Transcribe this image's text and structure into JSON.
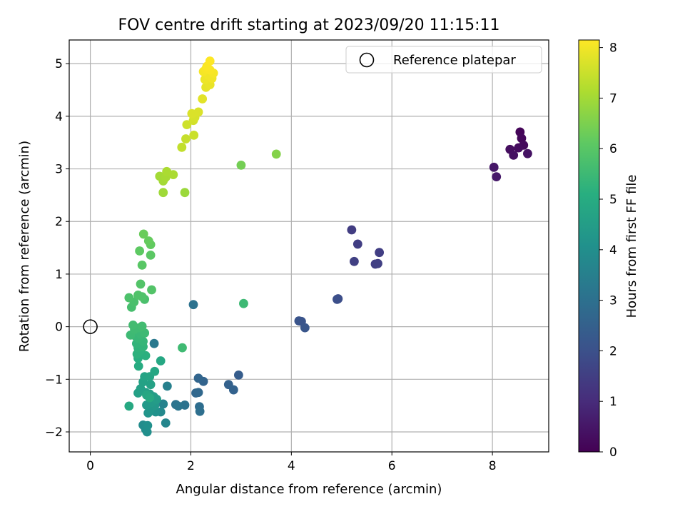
{
  "chart_data": {
    "type": "scatter",
    "title": "FOV centre drift starting at 2023/09/20 11:15:11",
    "xlabel": "Angular distance from reference (arcmin)",
    "ylabel": "Rotation from reference (arcmin)",
    "xlim": [
      -0.42,
      9.12
    ],
    "ylim": [
      -2.38,
      5.45
    ],
    "xticks": [
      0,
      2,
      4,
      6,
      8
    ],
    "yticks": [
      -2,
      -1,
      0,
      1,
      2,
      3,
      4,
      5
    ],
    "grid": true,
    "legend": {
      "placement": "top-right",
      "entries": [
        "Reference platepar"
      ]
    },
    "reference_point": {
      "x": 0,
      "y": 0
    },
    "colorbar": {
      "label": "Hours from first FF file",
      "range": [
        0,
        8.15
      ],
      "ticks": [
        0,
        1,
        2,
        3,
        4,
        5,
        6,
        7,
        8
      ],
      "colormap": "viridis"
    },
    "series": [
      {
        "points": [
          {
            "x": 8.55,
            "y": 3.7,
            "h": 0.1
          },
          {
            "x": 8.58,
            "y": 3.58,
            "h": 0.15
          },
          {
            "x": 8.62,
            "y": 3.45,
            "h": 0.2
          },
          {
            "x": 8.52,
            "y": 3.4,
            "h": 0.25
          },
          {
            "x": 8.35,
            "y": 3.37,
            "h": 0.3
          },
          {
            "x": 8.42,
            "y": 3.26,
            "h": 0.35
          },
          {
            "x": 8.7,
            "y": 3.29,
            "h": 0.4
          },
          {
            "x": 8.03,
            "y": 3.03,
            "h": 0.5
          },
          {
            "x": 8.08,
            "y": 2.85,
            "h": 0.55
          },
          {
            "x": 5.2,
            "y": 1.84,
            "h": 1.45
          },
          {
            "x": 5.32,
            "y": 1.57,
            "h": 1.5
          },
          {
            "x": 5.75,
            "y": 1.41,
            "h": 1.5
          },
          {
            "x": 5.25,
            "y": 1.24,
            "h": 1.55
          },
          {
            "x": 5.67,
            "y": 1.19,
            "h": 1.5
          },
          {
            "x": 5.72,
            "y": 1.2,
            "h": 1.55
          },
          {
            "x": 4.93,
            "y": 0.53,
            "h": 1.9
          },
          {
            "x": 4.91,
            "y": 0.52,
            "h": 1.95
          },
          {
            "x": 4.15,
            "y": 0.11,
            "h": 2.1
          },
          {
            "x": 4.2,
            "y": 0.1,
            "h": 2.1
          },
          {
            "x": 4.27,
            "y": -0.02,
            "h": 2.15
          },
          {
            "x": 2.95,
            "y": -0.92,
            "h": 2.4
          },
          {
            "x": 2.75,
            "y": -1.1,
            "h": 2.5
          },
          {
            "x": 2.85,
            "y": -1.2,
            "h": 2.55
          },
          {
            "x": 2.25,
            "y": -1.04,
            "h": 2.6
          },
          {
            "x": 2.15,
            "y": -0.98,
            "h": 2.65
          },
          {
            "x": 2.1,
            "y": -1.26,
            "h": 2.7
          },
          {
            "x": 2.15,
            "y": -1.25,
            "h": 2.75
          },
          {
            "x": 2.17,
            "y": -1.52,
            "h": 2.9
          },
          {
            "x": 2.18,
            "y": -1.61,
            "h": 2.95
          },
          {
            "x": 1.88,
            "y": -1.49,
            "h": 3.05
          },
          {
            "x": 1.7,
            "y": -1.48,
            "h": 3.1
          },
          {
            "x": 1.75,
            "y": -1.51,
            "h": 3.15
          },
          {
            "x": 2.05,
            "y": 0.42,
            "h": 3.05
          },
          {
            "x": 1.27,
            "y": -0.32,
            "h": 3.3
          },
          {
            "x": 1.53,
            "y": -1.13,
            "h": 3.5
          },
          {
            "x": 1.45,
            "y": -1.47,
            "h": 3.6
          },
          {
            "x": 1.5,
            "y": -1.83,
            "h": 3.7
          },
          {
            "x": 1.4,
            "y": -1.62,
            "h": 3.8
          },
          {
            "x": 1.05,
            "y": -1.87,
            "h": 3.9
          },
          {
            "x": 1.1,
            "y": -1.95,
            "h": 3.95
          },
          {
            "x": 1.13,
            "y": -2.0,
            "h": 4.0
          },
          {
            "x": 1.14,
            "y": -1.88,
            "h": 4.05
          },
          {
            "x": 1.3,
            "y": -1.62,
            "h": 4.1
          },
          {
            "x": 1.15,
            "y": -1.64,
            "h": 4.2
          },
          {
            "x": 1.2,
            "y": -1.56,
            "h": 4.25
          },
          {
            "x": 1.28,
            "y": -1.5,
            "h": 4.3
          },
          {
            "x": 1.12,
            "y": -1.49,
            "h": 4.35
          },
          {
            "x": 1.22,
            "y": -1.44,
            "h": 4.4
          },
          {
            "x": 1.32,
            "y": -1.38,
            "h": 4.45
          },
          {
            "x": 1.26,
            "y": -1.33,
            "h": 4.5
          },
          {
            "x": 1.18,
            "y": -1.28,
            "h": 4.5
          },
          {
            "x": 1.1,
            "y": -1.25,
            "h": 4.55
          },
          {
            "x": 0.95,
            "y": -1.26,
            "h": 4.6
          },
          {
            "x": 1.0,
            "y": -1.18,
            "h": 4.6
          },
          {
            "x": 1.2,
            "y": -1.1,
            "h": 4.65
          },
          {
            "x": 1.05,
            "y": -1.05,
            "h": 4.65
          },
          {
            "x": 1.08,
            "y": -0.95,
            "h": 4.7
          },
          {
            "x": 1.18,
            "y": -0.95,
            "h": 4.75
          },
          {
            "x": 1.12,
            "y": -1.3,
            "h": 4.8
          },
          {
            "x": 1.28,
            "y": -0.85,
            "h": 4.8
          },
          {
            "x": 1.4,
            "y": -0.65,
            "h": 4.85
          },
          {
            "x": 0.77,
            "y": -1.51,
            "h": 4.9
          },
          {
            "x": 1.18,
            "y": -1.35,
            "h": 4.9
          },
          {
            "x": 0.96,
            "y": -0.75,
            "h": 5.0
          },
          {
            "x": 0.95,
            "y": -0.6,
            "h": 5.1
          },
          {
            "x": 1.1,
            "y": -0.55,
            "h": 5.15
          },
          {
            "x": 0.93,
            "y": -0.52,
            "h": 5.2
          },
          {
            "x": 1.0,
            "y": -0.45,
            "h": 5.2
          },
          {
            "x": 0.95,
            "y": -0.4,
            "h": 5.25
          },
          {
            "x": 1.05,
            "y": -0.38,
            "h": 5.3
          },
          {
            "x": 0.92,
            "y": -0.32,
            "h": 5.3
          },
          {
            "x": 1.05,
            "y": -0.28,
            "h": 5.35
          },
          {
            "x": 0.95,
            "y": -0.22,
            "h": 5.4
          },
          {
            "x": 0.9,
            "y": -0.18,
            "h": 5.4
          },
          {
            "x": 1.0,
            "y": -0.15,
            "h": 5.45
          },
          {
            "x": 0.8,
            "y": -0.16,
            "h": 5.5
          },
          {
            "x": 1.08,
            "y": -0.12,
            "h": 5.5
          },
          {
            "x": 0.88,
            "y": -0.05,
            "h": 5.55
          },
          {
            "x": 0.98,
            "y": -0.02,
            "h": 5.55
          },
          {
            "x": 0.85,
            "y": 0.03,
            "h": 5.6
          },
          {
            "x": 1.03,
            "y": 0.01,
            "h": 5.6
          },
          {
            "x": 1.83,
            "y": -0.4,
            "h": 5.55
          },
          {
            "x": 3.05,
            "y": 0.44,
            "h": 5.5
          },
          {
            "x": 0.82,
            "y": 0.37,
            "h": 5.7
          },
          {
            "x": 0.87,
            "y": 0.47,
            "h": 5.75
          },
          {
            "x": 1.08,
            "y": 0.52,
            "h": 5.75
          },
          {
            "x": 0.77,
            "y": 0.55,
            "h": 5.8
          },
          {
            "x": 0.95,
            "y": 0.6,
            "h": 5.85
          },
          {
            "x": 1.03,
            "y": 0.57,
            "h": 5.85
          },
          {
            "x": 1.22,
            "y": 0.7,
            "h": 5.9
          },
          {
            "x": 1.0,
            "y": 0.81,
            "h": 5.9
          },
          {
            "x": 1.03,
            "y": 1.17,
            "h": 6.0
          },
          {
            "x": 1.2,
            "y": 1.36,
            "h": 6.05
          },
          {
            "x": 0.98,
            "y": 1.44,
            "h": 6.1
          },
          {
            "x": 1.2,
            "y": 1.56,
            "h": 6.15
          },
          {
            "x": 1.16,
            "y": 1.63,
            "h": 6.2
          },
          {
            "x": 1.06,
            "y": 1.76,
            "h": 6.25
          },
          {
            "x": 3.0,
            "y": 3.07,
            "h": 6.4
          },
          {
            "x": 3.7,
            "y": 3.28,
            "h": 6.6
          },
          {
            "x": 1.88,
            "y": 2.55,
            "h": 6.9
          },
          {
            "x": 1.45,
            "y": 2.55,
            "h": 6.95
          },
          {
            "x": 1.45,
            "y": 2.77,
            "h": 7.0
          },
          {
            "x": 1.38,
            "y": 2.86,
            "h": 7.0
          },
          {
            "x": 1.5,
            "y": 2.84,
            "h": 7.05
          },
          {
            "x": 1.52,
            "y": 2.95,
            "h": 7.1
          },
          {
            "x": 1.65,
            "y": 2.89,
            "h": 7.1
          },
          {
            "x": 1.82,
            "y": 3.41,
            "h": 7.4
          },
          {
            "x": 1.9,
            "y": 3.57,
            "h": 7.45
          },
          {
            "x": 2.06,
            "y": 3.64,
            "h": 7.5
          },
          {
            "x": 1.92,
            "y": 3.84,
            "h": 7.55
          },
          {
            "x": 2.05,
            "y": 3.92,
            "h": 7.6
          },
          {
            "x": 2.08,
            "y": 3.98,
            "h": 7.65
          },
          {
            "x": 2.15,
            "y": 4.08,
            "h": 7.7
          },
          {
            "x": 2.02,
            "y": 4.05,
            "h": 7.7
          },
          {
            "x": 2.23,
            "y": 4.33,
            "h": 7.8
          },
          {
            "x": 2.3,
            "y": 4.55,
            "h": 7.85
          },
          {
            "x": 2.38,
            "y": 4.6,
            "h": 7.9
          },
          {
            "x": 2.28,
            "y": 4.7,
            "h": 7.95
          },
          {
            "x": 2.35,
            "y": 4.78,
            "h": 8.0
          },
          {
            "x": 2.42,
            "y": 4.72,
            "h": 8.0
          },
          {
            "x": 2.25,
            "y": 4.85,
            "h": 8.05
          },
          {
            "x": 2.45,
            "y": 4.82,
            "h": 8.05
          },
          {
            "x": 2.3,
            "y": 4.9,
            "h": 8.08
          },
          {
            "x": 2.38,
            "y": 4.88,
            "h": 8.1
          },
          {
            "x": 2.32,
            "y": 4.95,
            "h": 8.12
          },
          {
            "x": 2.38,
            "y": 5.05,
            "h": 8.15
          }
        ]
      }
    ]
  }
}
